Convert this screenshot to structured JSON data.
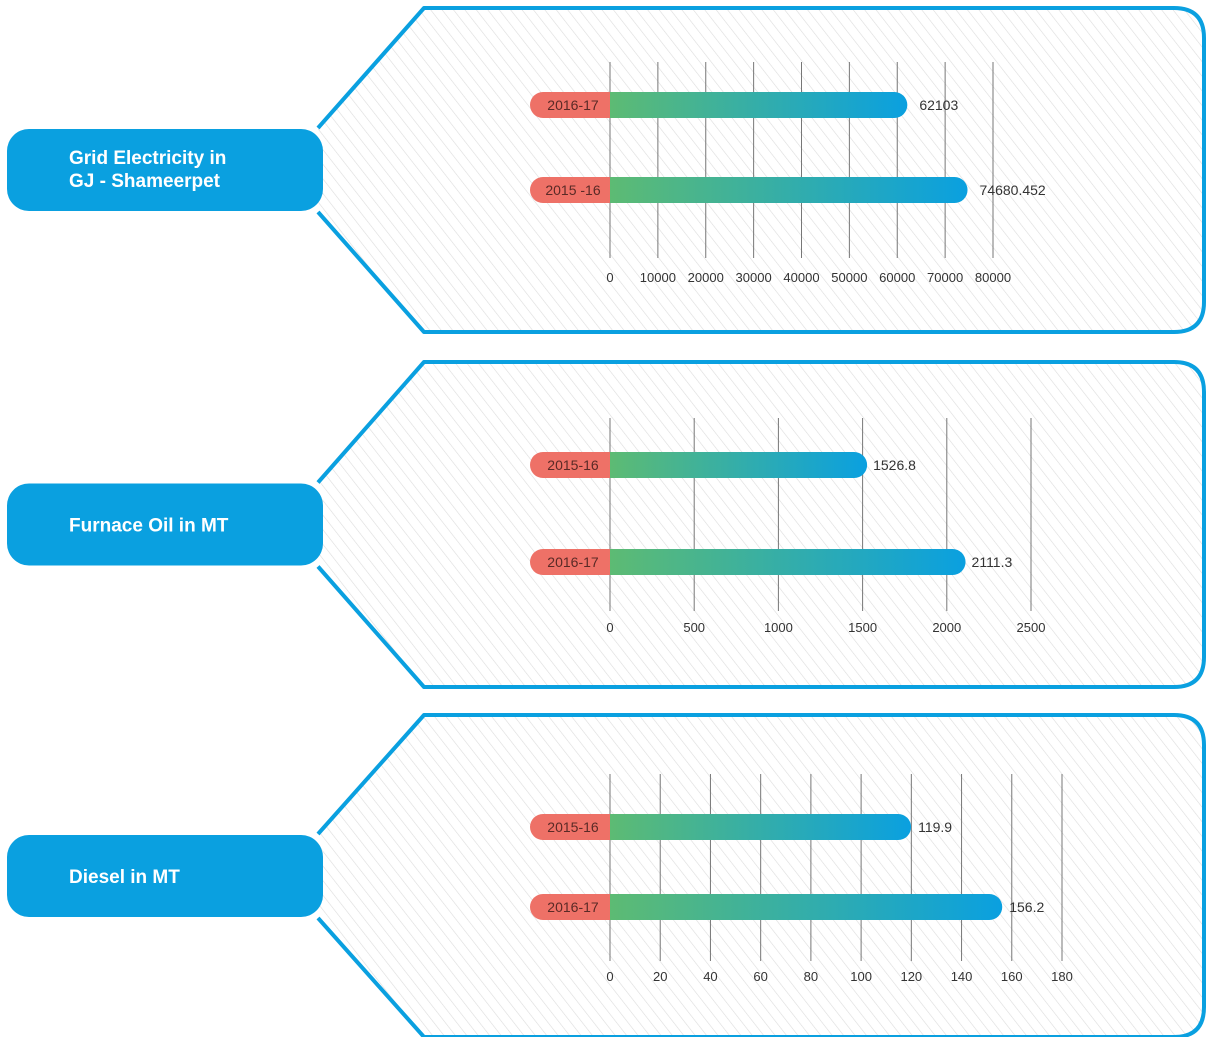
{
  "colors": {
    "accent": "#0aa0e0",
    "bar_start": "#5dbb73",
    "bar_end": "#0aa0e0",
    "year_tag": "#ee7167",
    "grid": "#777777",
    "hatch": "#dcdcdc"
  },
  "chart_data": [
    {
      "type": "bar",
      "orientation": "horizontal",
      "title": "Grid Electricity in GJ - Shameerpet",
      "title_lines": [
        "Grid Electricity in",
        "GJ - Shameerpet"
      ],
      "categories": [
        "2016-17",
        "2015 -16"
      ],
      "values": [
        62103,
        74680.452
      ],
      "value_labels": [
        "62103",
        "74680.452"
      ],
      "xlim": [
        0,
        80000
      ],
      "ticks": [
        0,
        10000,
        20000,
        30000,
        40000,
        50000,
        60000,
        70000,
        80000
      ],
      "tick_labels": [
        "0",
        "10000",
        "20000",
        "30000",
        "40000",
        "50000",
        "60000",
        "70000",
        "80000"
      ],
      "grid": true
    },
    {
      "type": "bar",
      "orientation": "horizontal",
      "title": "Furnace Oil in MT",
      "title_lines": [
        "Furnace Oil in MT"
      ],
      "categories": [
        "2015-16",
        "2016-17"
      ],
      "values": [
        1526.8,
        2111.3
      ],
      "value_labels": [
        "1526.8",
        "2111.3"
      ],
      "xlim": [
        0,
        2500
      ],
      "ticks": [
        0,
        500,
        1000,
        1500,
        2000,
        2500
      ],
      "tick_labels": [
        "0",
        "500",
        "1000",
        "1500",
        "2000",
        "2500"
      ],
      "grid": true
    },
    {
      "type": "bar",
      "orientation": "horizontal",
      "title": "Diesel in MT",
      "title_lines": [
        "Diesel in MT"
      ],
      "categories": [
        "2015-16",
        "2016-17"
      ],
      "values": [
        119.9,
        156.2
      ],
      "value_labels": [
        "119.9",
        "156.2"
      ],
      "xlim": [
        0,
        180
      ],
      "ticks": [
        0,
        20,
        40,
        60,
        80,
        100,
        120,
        140,
        160,
        180
      ],
      "tick_labels": [
        "0",
        "20",
        "40",
        "60",
        "80",
        "100",
        "120",
        "140",
        "160",
        "180"
      ],
      "grid": true
    }
  ]
}
